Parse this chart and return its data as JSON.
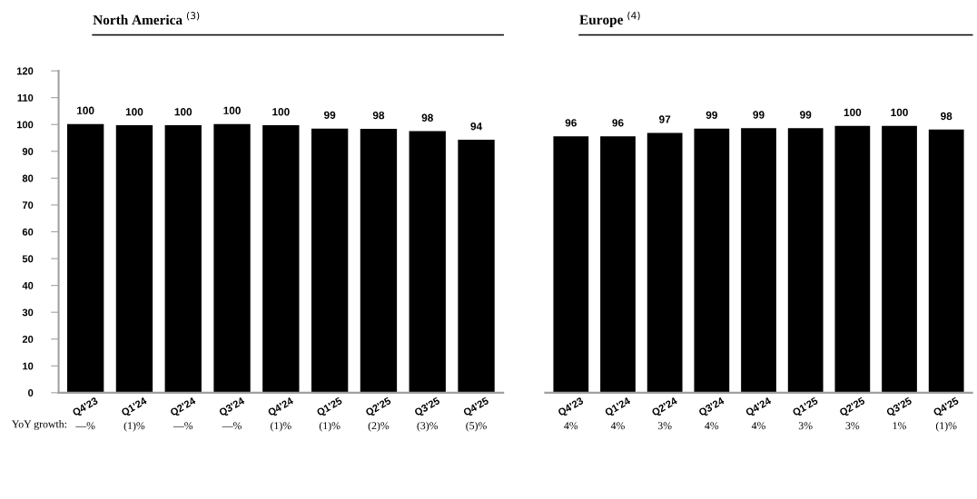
{
  "chart_data": [
    {
      "type": "bar",
      "title": "North America $^{(3)}$",
      "categories": [
        "Q4'23",
        "Q1'24",
        "Q2'24",
        "Q3'24",
        "Q4'24",
        "Q1'25",
        "Q2'25",
        "Q3'25",
        "Q4'25"
      ],
      "series": [
        {
          "color": "#000000",
          "values": [
            100.2,
            99.7,
            99.7,
            100.2,
            99.7,
            98.5,
            98.4,
            97.5,
            94.3
          ],
          "value_labels": [
            "100",
            "100",
            "100",
            "100",
            "100",
            "99",
            "98",
            "98",
            "94"
          ]
        }
      ],
      "ylim": [
        0,
        120
      ],
      "yticks": [
        0,
        10,
        20,
        30,
        40,
        50,
        60,
        70,
        80,
        90,
        100,
        110,
        120
      ],
      "annotations": [
        "YoY growth:",
        "—%",
        "(1)%",
        "—%",
        "—%",
        "(1)%",
        "(1)%",
        "(2)%",
        "(3)%",
        "(5)%"
      ]
    },
    {
      "type": "bar",
      "title": "Europe $^{(4)}$",
      "categories": [
        "Q4'23",
        "Q1'24",
        "Q2'24",
        "Q3'24",
        "Q4'24",
        "Q1'25",
        "Q2'25",
        "Q3'25",
        "Q4'25"
      ],
      "series": [
        {
          "color": "#000000",
          "values": [
            95.6,
            95.6,
            96.9,
            98.5,
            98.6,
            98.6,
            99.5,
            99.5,
            98.1
          ],
          "value_labels": [
            "96",
            "96",
            "97",
            "99",
            "99",
            "99",
            "100",
            "100",
            "98"
          ]
        }
      ],
      "ylim": [
        0,
        120
      ],
      "tick_labels": "x",
      "annotations": [
        "4%",
        "4%",
        "3%",
        "4%",
        "4%",
        "3%",
        "3%",
        "1%",
        "(1)%"
      ]
    }
  ]
}
